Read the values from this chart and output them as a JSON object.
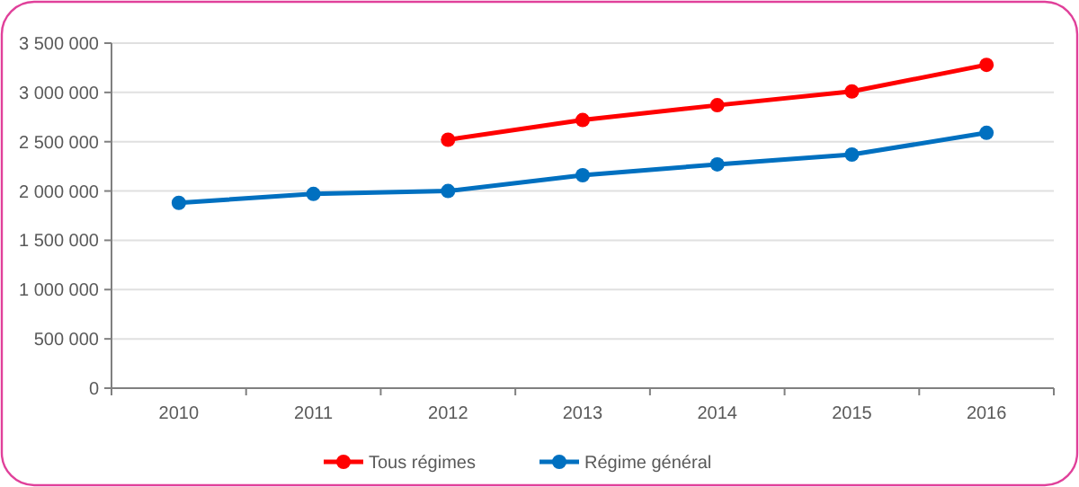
{
  "chart_data": {
    "type": "line",
    "categories": [
      "2010",
      "2011",
      "2012",
      "2013",
      "2014",
      "2015",
      "2016"
    ],
    "series": [
      {
        "name": "Tous régimes",
        "color": "#ff0000",
        "values": [
          null,
          null,
          2520000,
          2720000,
          2870000,
          3010000,
          3280000
        ]
      },
      {
        "name": "Régime général",
        "color": "#0070c0",
        "values": [
          1880000,
          1970000,
          2000000,
          2160000,
          2270000,
          2370000,
          2590000
        ]
      }
    ],
    "ylim": [
      0,
      3500000
    ],
    "yticks": [
      {
        "value": 0,
        "label": "0"
      },
      {
        "value": 500000,
        "label": "500 000"
      },
      {
        "value": 1000000,
        "label": "1 000 000"
      },
      {
        "value": 1500000,
        "label": "1 500 000"
      },
      {
        "value": 2000000,
        "label": "2 000 000"
      },
      {
        "value": 2500000,
        "label": "2 500 000"
      },
      {
        "value": 3000000,
        "label": "3 000 000"
      },
      {
        "value": 3500000,
        "label": "3 500 000"
      }
    ],
    "grid": "y",
    "legend": "bottom",
    "marker": "circle",
    "line_style": "solid"
  }
}
